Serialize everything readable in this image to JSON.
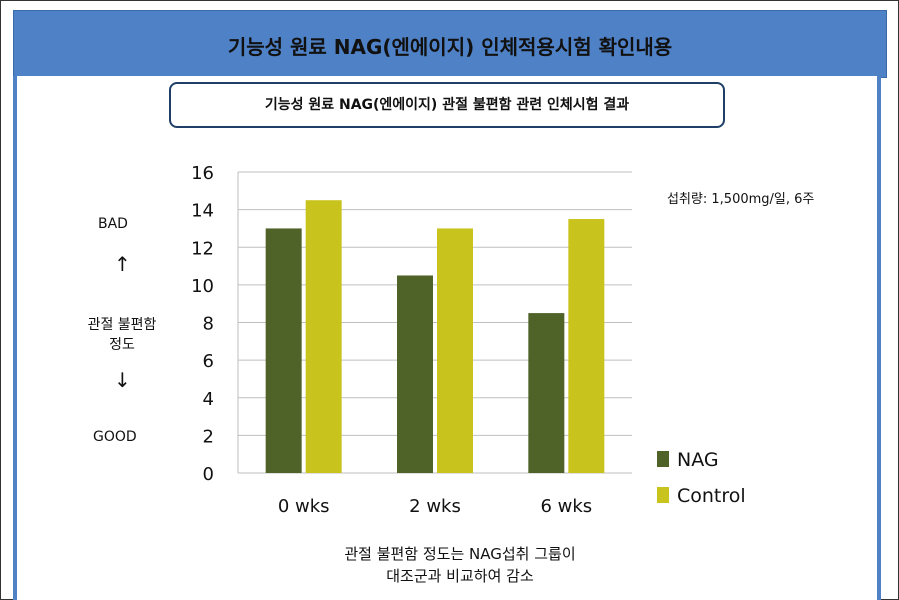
{
  "banner_title": "기능성 원료 NAG(엔에이지) 인체적용시험 확인내용",
  "subtitle": "기능성 원료 NAG(엔에이지) 관절 불편함 관련 인체시험 결과",
  "scale_label": {
    "bad": "BAD",
    "middle_line1": "관절 불편함",
    "middle_line2": "정도",
    "good": "GOOD",
    "up_arrow": "↑",
    "down_arrow": "↓"
  },
  "dose_note": "섭취량: 1,500mg/일, 6주",
  "caption": {
    "line1": "관절 불편함 정도는 NAG섭취 그룹이",
    "line2": "대조군과 비교하여 감소"
  },
  "chart_data": {
    "type": "bar",
    "categories": [
      "0 wks",
      "2 wks",
      "6 wks"
    ],
    "series": [
      {
        "name": "NAG",
        "values": [
          13,
          10.5,
          8.5
        ],
        "color": "#4f6228"
      },
      {
        "name": "Control",
        "values": [
          14.5,
          13,
          13.5
        ],
        "color": "#c9c31d"
      }
    ],
    "ylim": [
      0,
      16
    ],
    "yticks": [
      0,
      2,
      4,
      6,
      8,
      10,
      12,
      14,
      16
    ],
    "grid": true,
    "legend_position": "right"
  }
}
